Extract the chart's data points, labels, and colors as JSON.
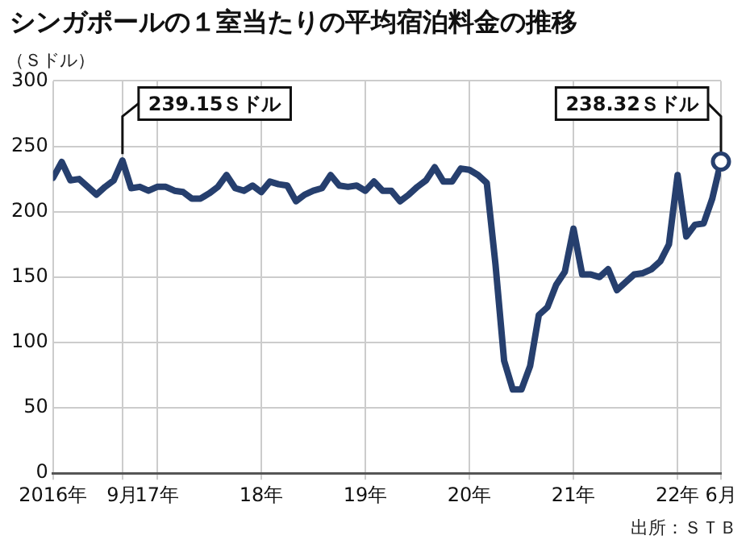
{
  "chart_data": {
    "type": "line",
    "title": "シンガポールの１室当たりの平均宿泊料金の推移",
    "ylabel": "（Ｓドル）",
    "x": [
      "2016-01",
      "2016-02",
      "2016-03",
      "2016-04",
      "2016-05",
      "2016-06",
      "2016-07",
      "2016-08",
      "2016-09",
      "2016-10",
      "2016-11",
      "2016-12",
      "2017-01",
      "2017-02",
      "2017-03",
      "2017-04",
      "2017-05",
      "2017-06",
      "2017-07",
      "2017-08",
      "2017-09",
      "2017-10",
      "2017-11",
      "2017-12",
      "2018-01",
      "2018-02",
      "2018-03",
      "2018-04",
      "2018-05",
      "2018-06",
      "2018-07",
      "2018-08",
      "2018-09",
      "2018-10",
      "2018-11",
      "2018-12",
      "2019-01",
      "2019-02",
      "2019-03",
      "2019-04",
      "2019-05",
      "2019-06",
      "2019-07",
      "2019-08",
      "2019-09",
      "2019-10",
      "2019-11",
      "2019-12",
      "2020-01",
      "2020-02",
      "2020-03",
      "2020-04",
      "2020-05",
      "2020-06",
      "2020-07",
      "2020-08",
      "2020-09",
      "2020-10",
      "2020-11",
      "2020-12",
      "2021-01",
      "2021-02",
      "2021-03",
      "2021-04",
      "2021-05",
      "2021-06",
      "2021-07",
      "2021-08",
      "2021-09",
      "2021-10",
      "2021-11",
      "2021-12",
      "2022-01",
      "2022-02",
      "2022-03",
      "2022-04",
      "2022-05",
      "2022-06"
    ],
    "series": [
      {
        "color": "#263f6e",
        "values": [
          226,
          238,
          224,
          225,
          219,
          213,
          219,
          224,
          239.15,
          218,
          219,
          216,
          219,
          219,
          216,
          215,
          210,
          210,
          214,
          219,
          228,
          218,
          216,
          220,
          215,
          223,
          221,
          220,
          208,
          213,
          216,
          218,
          228,
          220,
          219,
          220,
          216,
          223,
          216,
          216,
          208,
          213,
          219,
          224,
          234,
          223,
          223,
          233,
          232,
          228,
          222,
          160,
          86,
          64,
          64,
          82,
          121,
          127,
          144,
          154,
          187,
          152,
          152,
          150,
          156,
          140,
          146,
          152,
          153,
          156,
          162,
          175,
          228,
          181,
          190,
          191,
          210,
          238.32
        ]
      }
    ],
    "xlim": [
      "2016-01",
      "2022-06"
    ],
    "xticks": [
      {
        "value": "2016-01",
        "label": "2016年"
      },
      {
        "value": "2016-09",
        "label": "9月"
      },
      {
        "value": "2017-01",
        "label": "17年"
      },
      {
        "value": "2018-01",
        "label": "18年"
      },
      {
        "value": "2019-01",
        "label": "19年"
      },
      {
        "value": "2020-01",
        "label": "20年"
      },
      {
        "value": "2021-01",
        "label": "21年"
      },
      {
        "value": "2022-01",
        "label": "22年"
      },
      {
        "value": "2022-06",
        "label": "6月"
      }
    ],
    "ylim": [
      0,
      300
    ],
    "yticks": [
      0,
      50,
      100,
      150,
      200,
      250,
      300
    ],
    "grid": true,
    "legend": false,
    "marker": "none",
    "line_style": "solid",
    "annotations": [
      {
        "text": "239.15Ｓドル",
        "x": "2016-09",
        "y": 239.15
      },
      {
        "text": "238.32Ｓドル",
        "x": "2022-06",
        "y": 238.32
      },
      "出所：ＳＴＢ"
    ]
  }
}
